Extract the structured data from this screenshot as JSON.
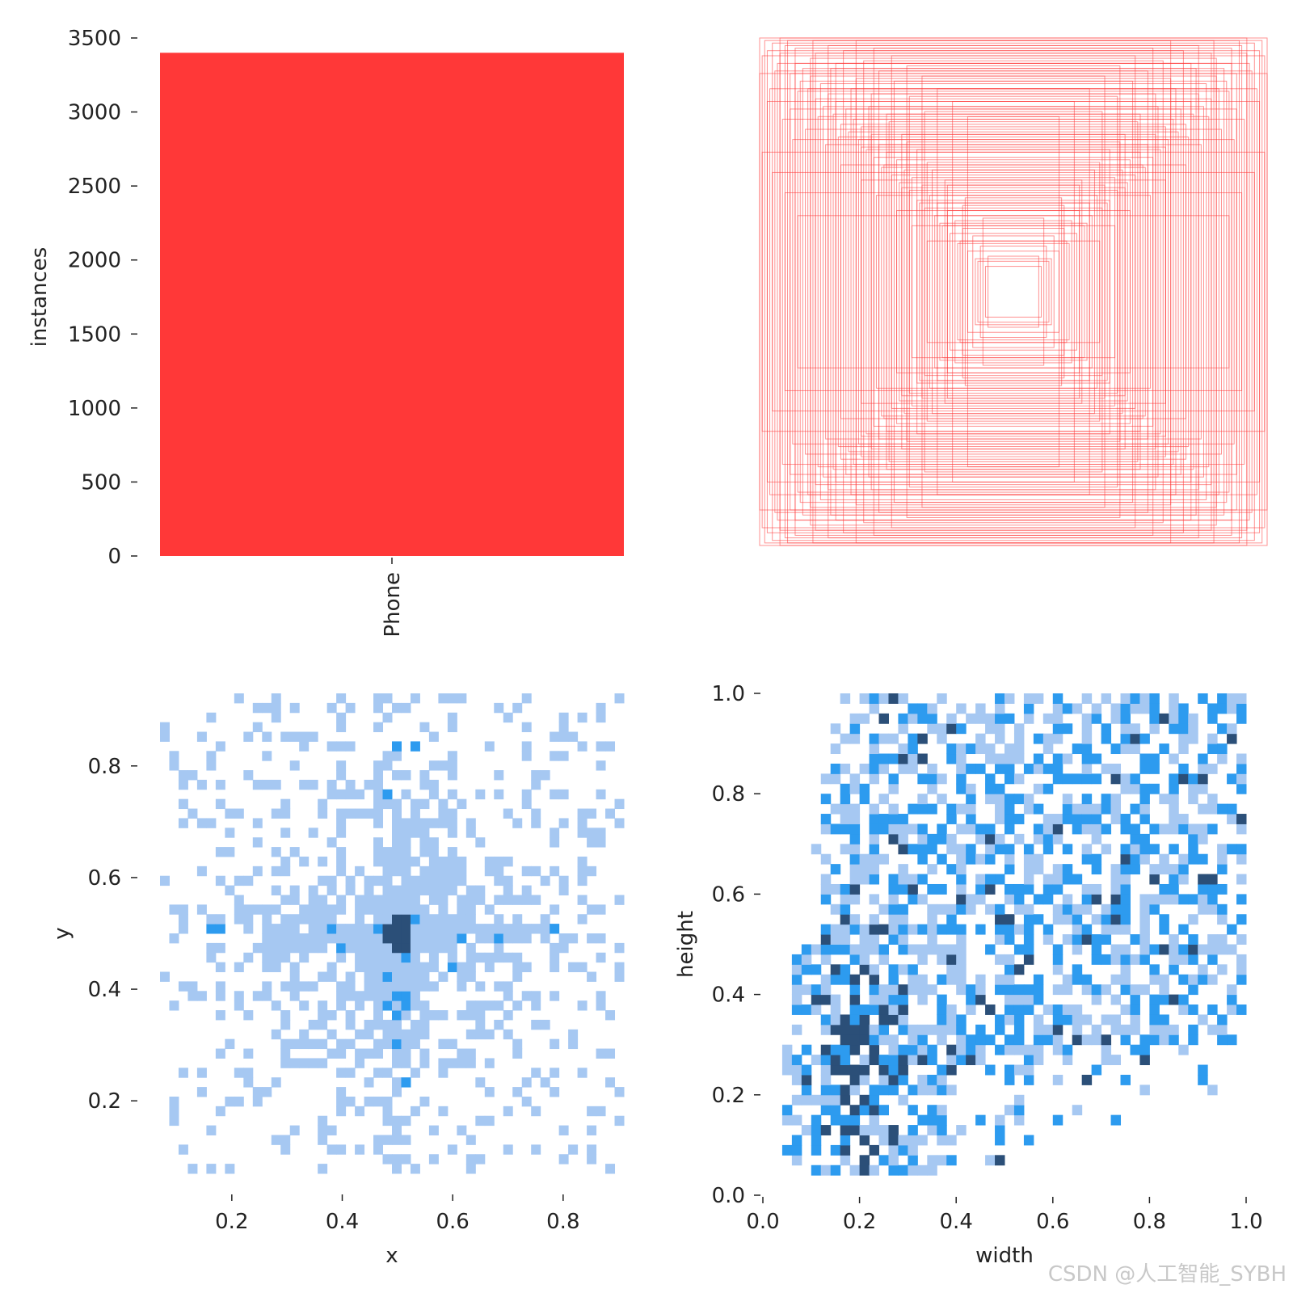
{
  "colors": {
    "bar": "#ff3838",
    "box_stroke": "#ff3838",
    "hist_light": "#a6c8f2",
    "hist_mid": "#2d9bef",
    "hist_dark": "#2b4f78",
    "tick": "#222222"
  },
  "watermark": "CSDN @人工智能_SYBH",
  "chart_data": [
    {
      "type": "bar",
      "categories": [
        "Phone"
      ],
      "values": [
        3400
      ],
      "ylabel": "instances",
      "xlabel": "",
      "ylim": [
        0,
        3500
      ],
      "yticks": [
        0,
        500,
        1000,
        1500,
        2000,
        2500,
        3000,
        3500
      ],
      "ytick_labels": [
        "0",
        "500",
        "1000",
        "1500",
        "2000",
        "2500",
        "3000",
        "3500"
      ],
      "grid": false
    },
    {
      "type": "boxes",
      "description_free": true,
      "boxes_wh": [
        [
          1.0,
          1.0
        ],
        [
          0.98,
          0.99
        ],
        [
          0.97,
          0.95
        ],
        [
          0.95,
          0.98
        ],
        [
          0.93,
          0.9
        ],
        [
          0.92,
          0.94
        ],
        [
          0.9,
          0.97
        ],
        [
          0.88,
          0.86
        ],
        [
          0.86,
          0.9
        ],
        [
          0.84,
          0.83
        ],
        [
          0.83,
          0.88
        ],
        [
          0.81,
          0.8
        ],
        [
          0.8,
          0.85
        ],
        [
          0.78,
          0.76
        ],
        [
          0.76,
          0.82
        ],
        [
          0.75,
          0.73
        ],
        [
          0.73,
          0.78
        ],
        [
          0.71,
          0.7
        ],
        [
          0.7,
          0.75
        ],
        [
          0.68,
          0.66
        ],
        [
          0.66,
          0.72
        ],
        [
          0.65,
          0.63
        ],
        [
          0.63,
          0.68
        ],
        [
          0.61,
          0.6
        ],
        [
          0.6,
          0.65
        ],
        [
          0.58,
          0.56
        ],
        [
          0.56,
          0.62
        ],
        [
          0.55,
          0.53
        ],
        [
          0.53,
          0.58
        ],
        [
          0.51,
          0.5
        ],
        [
          0.5,
          0.55
        ],
        [
          0.48,
          0.46
        ],
        [
          0.46,
          0.52
        ],
        [
          0.45,
          0.43
        ],
        [
          0.43,
          0.48
        ],
        [
          0.41,
          0.4
        ],
        [
          0.4,
          0.45
        ],
        [
          0.38,
          0.36
        ],
        [
          0.36,
          0.42
        ],
        [
          0.35,
          0.33
        ],
        [
          0.33,
          0.38
        ],
        [
          0.31,
          0.3
        ],
        [
          0.3,
          0.35
        ],
        [
          0.28,
          0.26
        ],
        [
          0.26,
          0.32
        ],
        [
          0.25,
          0.23
        ],
        [
          0.23,
          0.28
        ],
        [
          0.21,
          0.2
        ],
        [
          0.2,
          0.25
        ],
        [
          0.18,
          0.16
        ],
        [
          0.16,
          0.22
        ],
        [
          0.15,
          0.13
        ],
        [
          0.13,
          0.18
        ],
        [
          0.11,
          0.1
        ],
        [
          0.1,
          0.14
        ],
        [
          1.0,
          0.86
        ],
        [
          0.92,
          1.0
        ],
        [
          0.86,
          0.96
        ],
        [
          0.96,
          0.8
        ],
        [
          0.78,
          0.94
        ],
        [
          0.88,
          0.72
        ],
        [
          0.7,
          0.9
        ],
        [
          0.82,
          0.64
        ],
        [
          0.62,
          0.84
        ],
        [
          0.74,
          0.58
        ],
        [
          0.56,
          0.78
        ],
        [
          0.68,
          0.5
        ],
        [
          0.5,
          0.7
        ],
        [
          0.6,
          0.44
        ],
        [
          0.44,
          0.62
        ],
        [
          0.54,
          0.38
        ],
        [
          0.38,
          0.56
        ],
        [
          0.46,
          0.32
        ],
        [
          0.32,
          0.48
        ],
        [
          0.4,
          0.26
        ],
        [
          0.26,
          0.42
        ],
        [
          0.34,
          0.2
        ],
        [
          0.2,
          0.34
        ],
        [
          0.99,
          0.93
        ],
        [
          0.94,
          0.87
        ],
        [
          0.89,
          0.99
        ],
        [
          0.85,
          0.79
        ],
        [
          0.8,
          0.92
        ],
        [
          0.77,
          0.69
        ],
        [
          0.72,
          0.88
        ],
        [
          0.69,
          0.61
        ],
        [
          0.64,
          0.8
        ],
        [
          0.6,
          0.57
        ],
        [
          0.57,
          0.73
        ],
        [
          0.52,
          0.49
        ],
        [
          0.49,
          0.67
        ],
        [
          0.44,
          0.41
        ],
        [
          0.42,
          0.59
        ],
        [
          0.37,
          0.35
        ],
        [
          0.34,
          0.51
        ],
        [
          0.29,
          0.27
        ],
        [
          0.27,
          0.44
        ],
        [
          0.22,
          0.19
        ],
        [
          0.19,
          0.37
        ],
        [
          0.14,
          0.12
        ],
        [
          0.12,
          0.29
        ],
        [
          0.97,
          0.75
        ],
        [
          0.91,
          0.68
        ],
        [
          0.87,
          0.6
        ],
        [
          0.79,
          0.99
        ],
        [
          0.73,
          0.97
        ],
        [
          0.67,
          0.95
        ],
        [
          0.59,
          0.91
        ],
        [
          0.53,
          0.87
        ],
        [
          0.47,
          0.83
        ],
        [
          0.41,
          0.77
        ],
        [
          0.35,
          0.71
        ],
        [
          0.99,
          0.55
        ],
        [
          0.95,
          0.47
        ],
        [
          0.9,
          0.39
        ],
        [
          0.85,
          0.3
        ],
        [
          0.62,
          0.99
        ],
        [
          0.55,
          0.96
        ],
        [
          0.48,
          0.93
        ],
        [
          0.42,
          0.89
        ],
        [
          0.36,
          0.85
        ],
        [
          0.3,
          0.8
        ],
        [
          0.24,
          0.75
        ],
        [
          0.18,
          0.69
        ]
      ]
    },
    {
      "type": "heatmap",
      "xlabel": "x",
      "ylabel": "y",
      "xlim": [
        0.07,
        0.91
      ],
      "ylim": [
        0.07,
        0.93
      ],
      "xticks": [
        0.2,
        0.4,
        0.6,
        0.8
      ],
      "xtick_labels": [
        "0.2",
        "0.4",
        "0.6",
        "0.8"
      ],
      "yticks": [
        0.2,
        0.4,
        0.6,
        0.8
      ],
      "ytick_labels": [
        "0.2",
        "0.4",
        "0.6",
        "0.8"
      ],
      "bins": [
        50,
        50
      ],
      "peak": [
        0.5,
        0.5
      ],
      "grid": false
    },
    {
      "type": "heatmap",
      "xlabel": "width",
      "ylabel": "height",
      "xlim": [
        0.0,
        1.0
      ],
      "ylim": [
        0.0,
        1.0
      ],
      "xticks": [
        0.0,
        0.2,
        0.4,
        0.6,
        0.8,
        1.0
      ],
      "xtick_labels": [
        "0.0",
        "0.2",
        "0.4",
        "0.6",
        "0.8",
        "1.0"
      ],
      "yticks": [
        0.0,
        0.2,
        0.4,
        0.6,
        0.8,
        1.0
      ],
      "ytick_labels": [
        "0.0",
        "0.2",
        "0.4",
        "0.6",
        "0.8",
        "1.0"
      ],
      "bins": [
        50,
        50
      ],
      "peak": [
        0.2,
        0.3
      ],
      "grid": false
    }
  ]
}
